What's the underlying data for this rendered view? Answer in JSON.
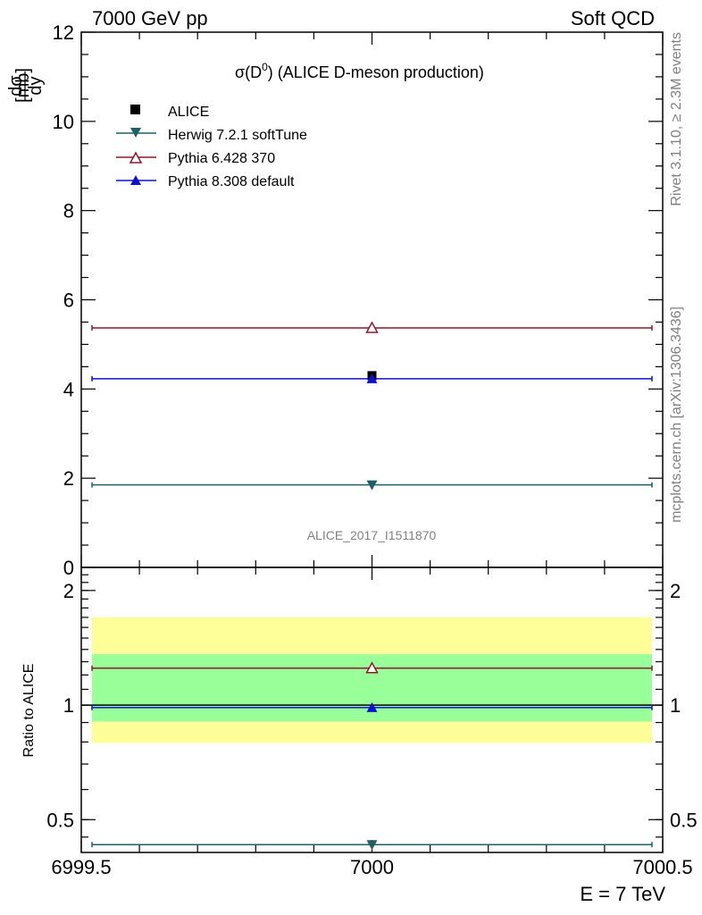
{
  "header": {
    "left": "7000 GeV pp",
    "right": "Soft QCD"
  },
  "side_text": {
    "rivet": "Rivet 3.1.10, ≥ 2.3M events",
    "mcplots": "mcplots.cern.ch [arXiv:1306.3436]"
  },
  "chart_data": [
    {
      "type": "scatter",
      "title_prefix": "σ(D",
      "title_sup": "0",
      "title_suffix": ") (ALICE D-meson production)",
      "ylabel_num": "dσ",
      "ylabel_den": "dy",
      "ylabel_unit": "[mb]",
      "xlim": [
        6999.5,
        7000.5
      ],
      "ylim": [
        0,
        12
      ],
      "yticks": [
        0,
        2,
        4,
        6,
        8,
        10,
        12
      ],
      "grid": false,
      "legend_position": "top-left",
      "analysis_id": "ALICE_2017_I1511870",
      "series": [
        {
          "name": "ALICE",
          "marker": "square-filled",
          "color": "#000000",
          "x": 7000,
          "y": 4.3,
          "line": false
        },
        {
          "name": "Herwig 7.2.1 softTune",
          "marker": "triangle-down-filled",
          "color": "#215f68",
          "x": 7000,
          "y": 1.85,
          "xerr": [
            6999.5,
            7000.5
          ]
        },
        {
          "name": "Pythia 6.428 370",
          "marker": "triangle-up-open",
          "color": "#8b1a2b",
          "x": 7000,
          "y": 5.37,
          "xerr": [
            6999.5,
            7000.5
          ]
        },
        {
          "name": "Pythia 8.308 default",
          "marker": "triangle-up-filled",
          "color": "#1010d0",
          "x": 7000,
          "y": 4.23,
          "xerr": [
            6999.5,
            7000.5
          ]
        }
      ]
    },
    {
      "type": "scatter",
      "ylabel": "Ratio to ALICE",
      "xlabel": "E = 7 TeV",
      "xlim": [
        6999.5,
        7000.5
      ],
      "ylim": [
        0.41,
        2.3
      ],
      "log_y": true,
      "yticks": [
        0.5,
        1,
        2
      ],
      "ytick_labels": [
        "0.5",
        "1",
        "2"
      ],
      "xticks": [
        6999.5,
        7000,
        7000.5
      ],
      "xtick_labels": [
        "6999.5",
        "7000",
        "7000.5"
      ],
      "bands": [
        {
          "name": "total uncertainty",
          "color": "#ffff99",
          "low": 0.795,
          "high": 1.7
        },
        {
          "name": "stat uncertainty",
          "color": "#99ff99",
          "low": 0.905,
          "high": 1.36
        }
      ],
      "series": [
        {
          "name": "ALICE",
          "color": "#000000",
          "y": 1.0
        },
        {
          "name": "Herwig 7.2.1 softTune",
          "marker": "triangle-down-filled",
          "color": "#215f68",
          "y": 0.43
        },
        {
          "name": "Pythia 6.428 370",
          "marker": "triangle-up-open",
          "color": "#8b1a2b",
          "y": 1.25
        },
        {
          "name": "Pythia 8.308 default",
          "marker": "triangle-up-filled",
          "color": "#1010d0",
          "y": 0.985
        }
      ]
    }
  ]
}
